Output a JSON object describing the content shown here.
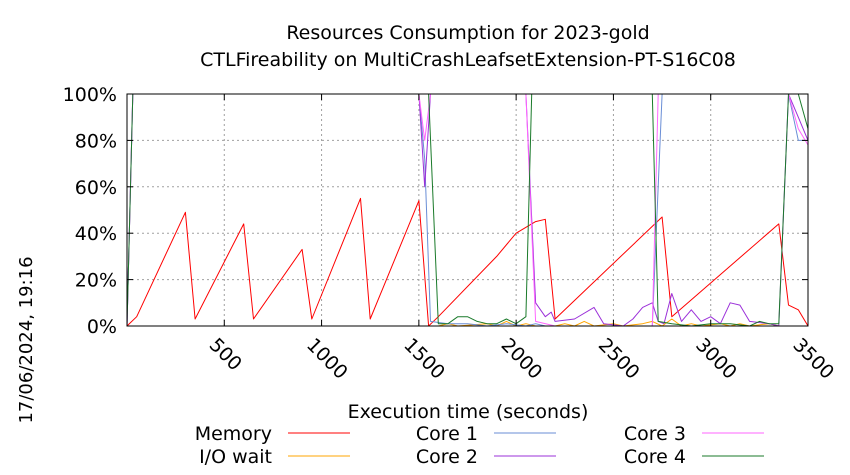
{
  "chart_data": {
    "type": "line",
    "title": "Resources Consumption for 2023-gold",
    "subtitle": "CTLFireability on MultiCrashLeafsetExtension-PT-S16C08",
    "xlabel": "Execution time (seconds)",
    "ylabel": "",
    "timestamp": "17/06/2024, 19:16",
    "xlim": [
      0,
      3500
    ],
    "ylim": [
      0,
      100
    ],
    "x_ticks": [
      500,
      1000,
      1500,
      2000,
      2500,
      3000,
      3500
    ],
    "x_tick_labels": [
      "500",
      "1000",
      "1500",
      "2000",
      "2500",
      "3000",
      "3500"
    ],
    "y_ticks": [
      0,
      20,
      40,
      60,
      80,
      100
    ],
    "y_tick_labels": [
      "0%",
      "20%",
      "40%",
      "60%",
      "80%",
      "100%"
    ],
    "grid": true,
    "legend_position": "bottom",
    "series": [
      {
        "name": "Memory",
        "color": "#ff0000",
        "points": [
          [
            0,
            0
          ],
          [
            50,
            4
          ],
          [
            300,
            49
          ],
          [
            350,
            3
          ],
          [
            600,
            44
          ],
          [
            650,
            3
          ],
          [
            900,
            33
          ],
          [
            950,
            3
          ],
          [
            1200,
            55
          ],
          [
            1250,
            3
          ],
          [
            1500,
            54
          ],
          [
            1550,
            0
          ],
          [
            1600,
            4
          ],
          [
            1900,
            30
          ],
          [
            2000,
            40
          ],
          [
            2100,
            45
          ],
          [
            2150,
            46
          ],
          [
            2200,
            3
          ],
          [
            2750,
            47
          ],
          [
            2800,
            4
          ],
          [
            3350,
            44
          ],
          [
            3400,
            9
          ],
          [
            3450,
            7
          ],
          [
            3500,
            0
          ],
          [
            3550,
            3
          ]
        ]
      },
      {
        "name": "I/O wait",
        "color": "#ffa500",
        "points": [
          [
            0,
            0
          ],
          [
            1500,
            0
          ],
          [
            1600,
            0
          ],
          [
            1650,
            1
          ],
          [
            1700,
            0
          ],
          [
            1850,
            1
          ],
          [
            1900,
            0
          ],
          [
            1950,
            2
          ],
          [
            2000,
            0
          ],
          [
            2050,
            1
          ],
          [
            2100,
            0
          ],
          [
            2200,
            0
          ],
          [
            2250,
            1
          ],
          [
            2300,
            0
          ],
          [
            2350,
            2
          ],
          [
            2400,
            0
          ],
          [
            2500,
            1
          ],
          [
            2550,
            0
          ],
          [
            2650,
            1
          ],
          [
            2700,
            2
          ],
          [
            2750,
            0
          ],
          [
            2800,
            3
          ],
          [
            2850,
            0
          ],
          [
            2900,
            1
          ],
          [
            2950,
            0
          ],
          [
            3050,
            1
          ],
          [
            3100,
            0
          ],
          [
            3150,
            1
          ],
          [
            3200,
            0
          ],
          [
            3300,
            1
          ],
          [
            3350,
            0
          ],
          [
            3400,
            0
          ]
        ]
      },
      {
        "name": "Core 1",
        "color": "#6a8ed6",
        "points": [
          [
            0,
            0
          ],
          [
            30,
            100
          ],
          [
            1500,
            100
          ],
          [
            1530,
            72
          ],
          [
            1560,
            2
          ],
          [
            1650,
            1
          ],
          [
            1750,
            1
          ],
          [
            1850,
            0
          ],
          [
            1950,
            1
          ],
          [
            2050,
            0
          ],
          [
            2100,
            1
          ],
          [
            2150,
            0
          ],
          [
            2200,
            0
          ],
          [
            2700,
            0
          ],
          [
            2750,
            100
          ],
          [
            3350,
            100
          ],
          [
            3400,
            100
          ],
          [
            3450,
            80
          ],
          [
            3500,
            80
          ],
          [
            3550,
            80
          ]
        ]
      },
      {
        "name": "Core 2",
        "color": "#9b30d9",
        "points": [
          [
            0,
            0
          ],
          [
            30,
            100
          ],
          [
            1500,
            100
          ],
          [
            1530,
            60
          ],
          [
            1560,
            100
          ],
          [
            2000,
            100
          ],
          [
            2050,
            100
          ],
          [
            2100,
            10
          ],
          [
            2150,
            4
          ],
          [
            2180,
            6
          ],
          [
            2200,
            2
          ],
          [
            2300,
            3
          ],
          [
            2400,
            8
          ],
          [
            2450,
            1
          ],
          [
            2550,
            0
          ],
          [
            2600,
            3
          ],
          [
            2650,
            8
          ],
          [
            2700,
            10
          ],
          [
            2730,
            2
          ],
          [
            2760,
            1
          ],
          [
            2800,
            14
          ],
          [
            2850,
            2
          ],
          [
            2900,
            7
          ],
          [
            2950,
            2
          ],
          [
            3000,
            4
          ],
          [
            3050,
            1
          ],
          [
            3100,
            10
          ],
          [
            3150,
            9
          ],
          [
            3200,
            2
          ],
          [
            3300,
            1
          ],
          [
            3350,
            0
          ],
          [
            3400,
            100
          ],
          [
            3450,
            90
          ],
          [
            3500,
            80
          ],
          [
            3550,
            72
          ]
        ]
      },
      {
        "name": "Core 3",
        "color": "#ff66ff",
        "points": [
          [
            0,
            0
          ],
          [
            30,
            100
          ],
          [
            1500,
            100
          ],
          [
            1530,
            80
          ],
          [
            1560,
            100
          ],
          [
            2000,
            100
          ],
          [
            2050,
            100
          ],
          [
            2100,
            2
          ],
          [
            2200,
            0
          ],
          [
            2700,
            0
          ],
          [
            2730,
            100
          ],
          [
            2760,
            100
          ],
          [
            2800,
            100
          ],
          [
            3350,
            100
          ],
          [
            3400,
            100
          ],
          [
            3450,
            85
          ],
          [
            3500,
            78
          ],
          [
            3550,
            70
          ]
        ]
      },
      {
        "name": "Core 4",
        "color": "#1a7a2a",
        "points": [
          [
            0,
            0
          ],
          [
            30,
            100
          ],
          [
            1500,
            100
          ],
          [
            1550,
            100
          ],
          [
            1600,
            1
          ],
          [
            1650,
            1
          ],
          [
            1700,
            4
          ],
          [
            1750,
            4
          ],
          [
            1800,
            2
          ],
          [
            1850,
            1
          ],
          [
            1900,
            1
          ],
          [
            1950,
            3
          ],
          [
            2000,
            1
          ],
          [
            2050,
            4
          ],
          [
            2080,
            100
          ],
          [
            2700,
            100
          ],
          [
            2730,
            2
          ],
          [
            2800,
            1
          ],
          [
            2900,
            0
          ],
          [
            3000,
            1
          ],
          [
            3100,
            1
          ],
          [
            3200,
            0
          ],
          [
            3250,
            2
          ],
          [
            3300,
            1
          ],
          [
            3350,
            1
          ],
          [
            3400,
            100
          ],
          [
            3450,
            100
          ],
          [
            3500,
            85
          ],
          [
            3550,
            80
          ]
        ]
      }
    ]
  }
}
